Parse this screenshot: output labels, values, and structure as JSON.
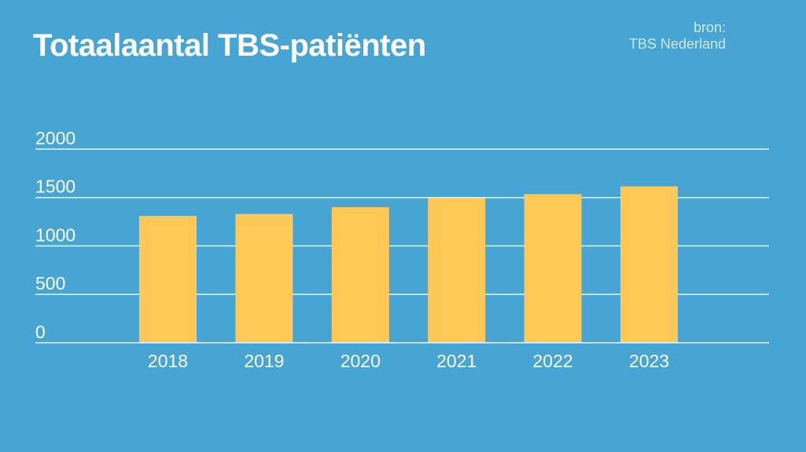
{
  "chart_data": {
    "type": "bar",
    "title": "Totaalaantal TBS-patiënten",
    "source": [
      "bron:",
      "TBS Nederland"
    ],
    "categories": [
      "2018",
      "2019",
      "2020",
      "2021",
      "2022",
      "2023"
    ],
    "values": [
      1310,
      1330,
      1400,
      1495,
      1535,
      1615
    ],
    "yticks": [
      "0",
      "500",
      "1000",
      "1500",
      "2000"
    ],
    "ylim": [
      0,
      2000
    ],
    "grid": true,
    "xlabel": "",
    "ylabel": "",
    "colors": {
      "background": "#47a5d3",
      "bar": "#ffc857",
      "grid": "#e8f7ff",
      "text": "#ffffff"
    }
  }
}
